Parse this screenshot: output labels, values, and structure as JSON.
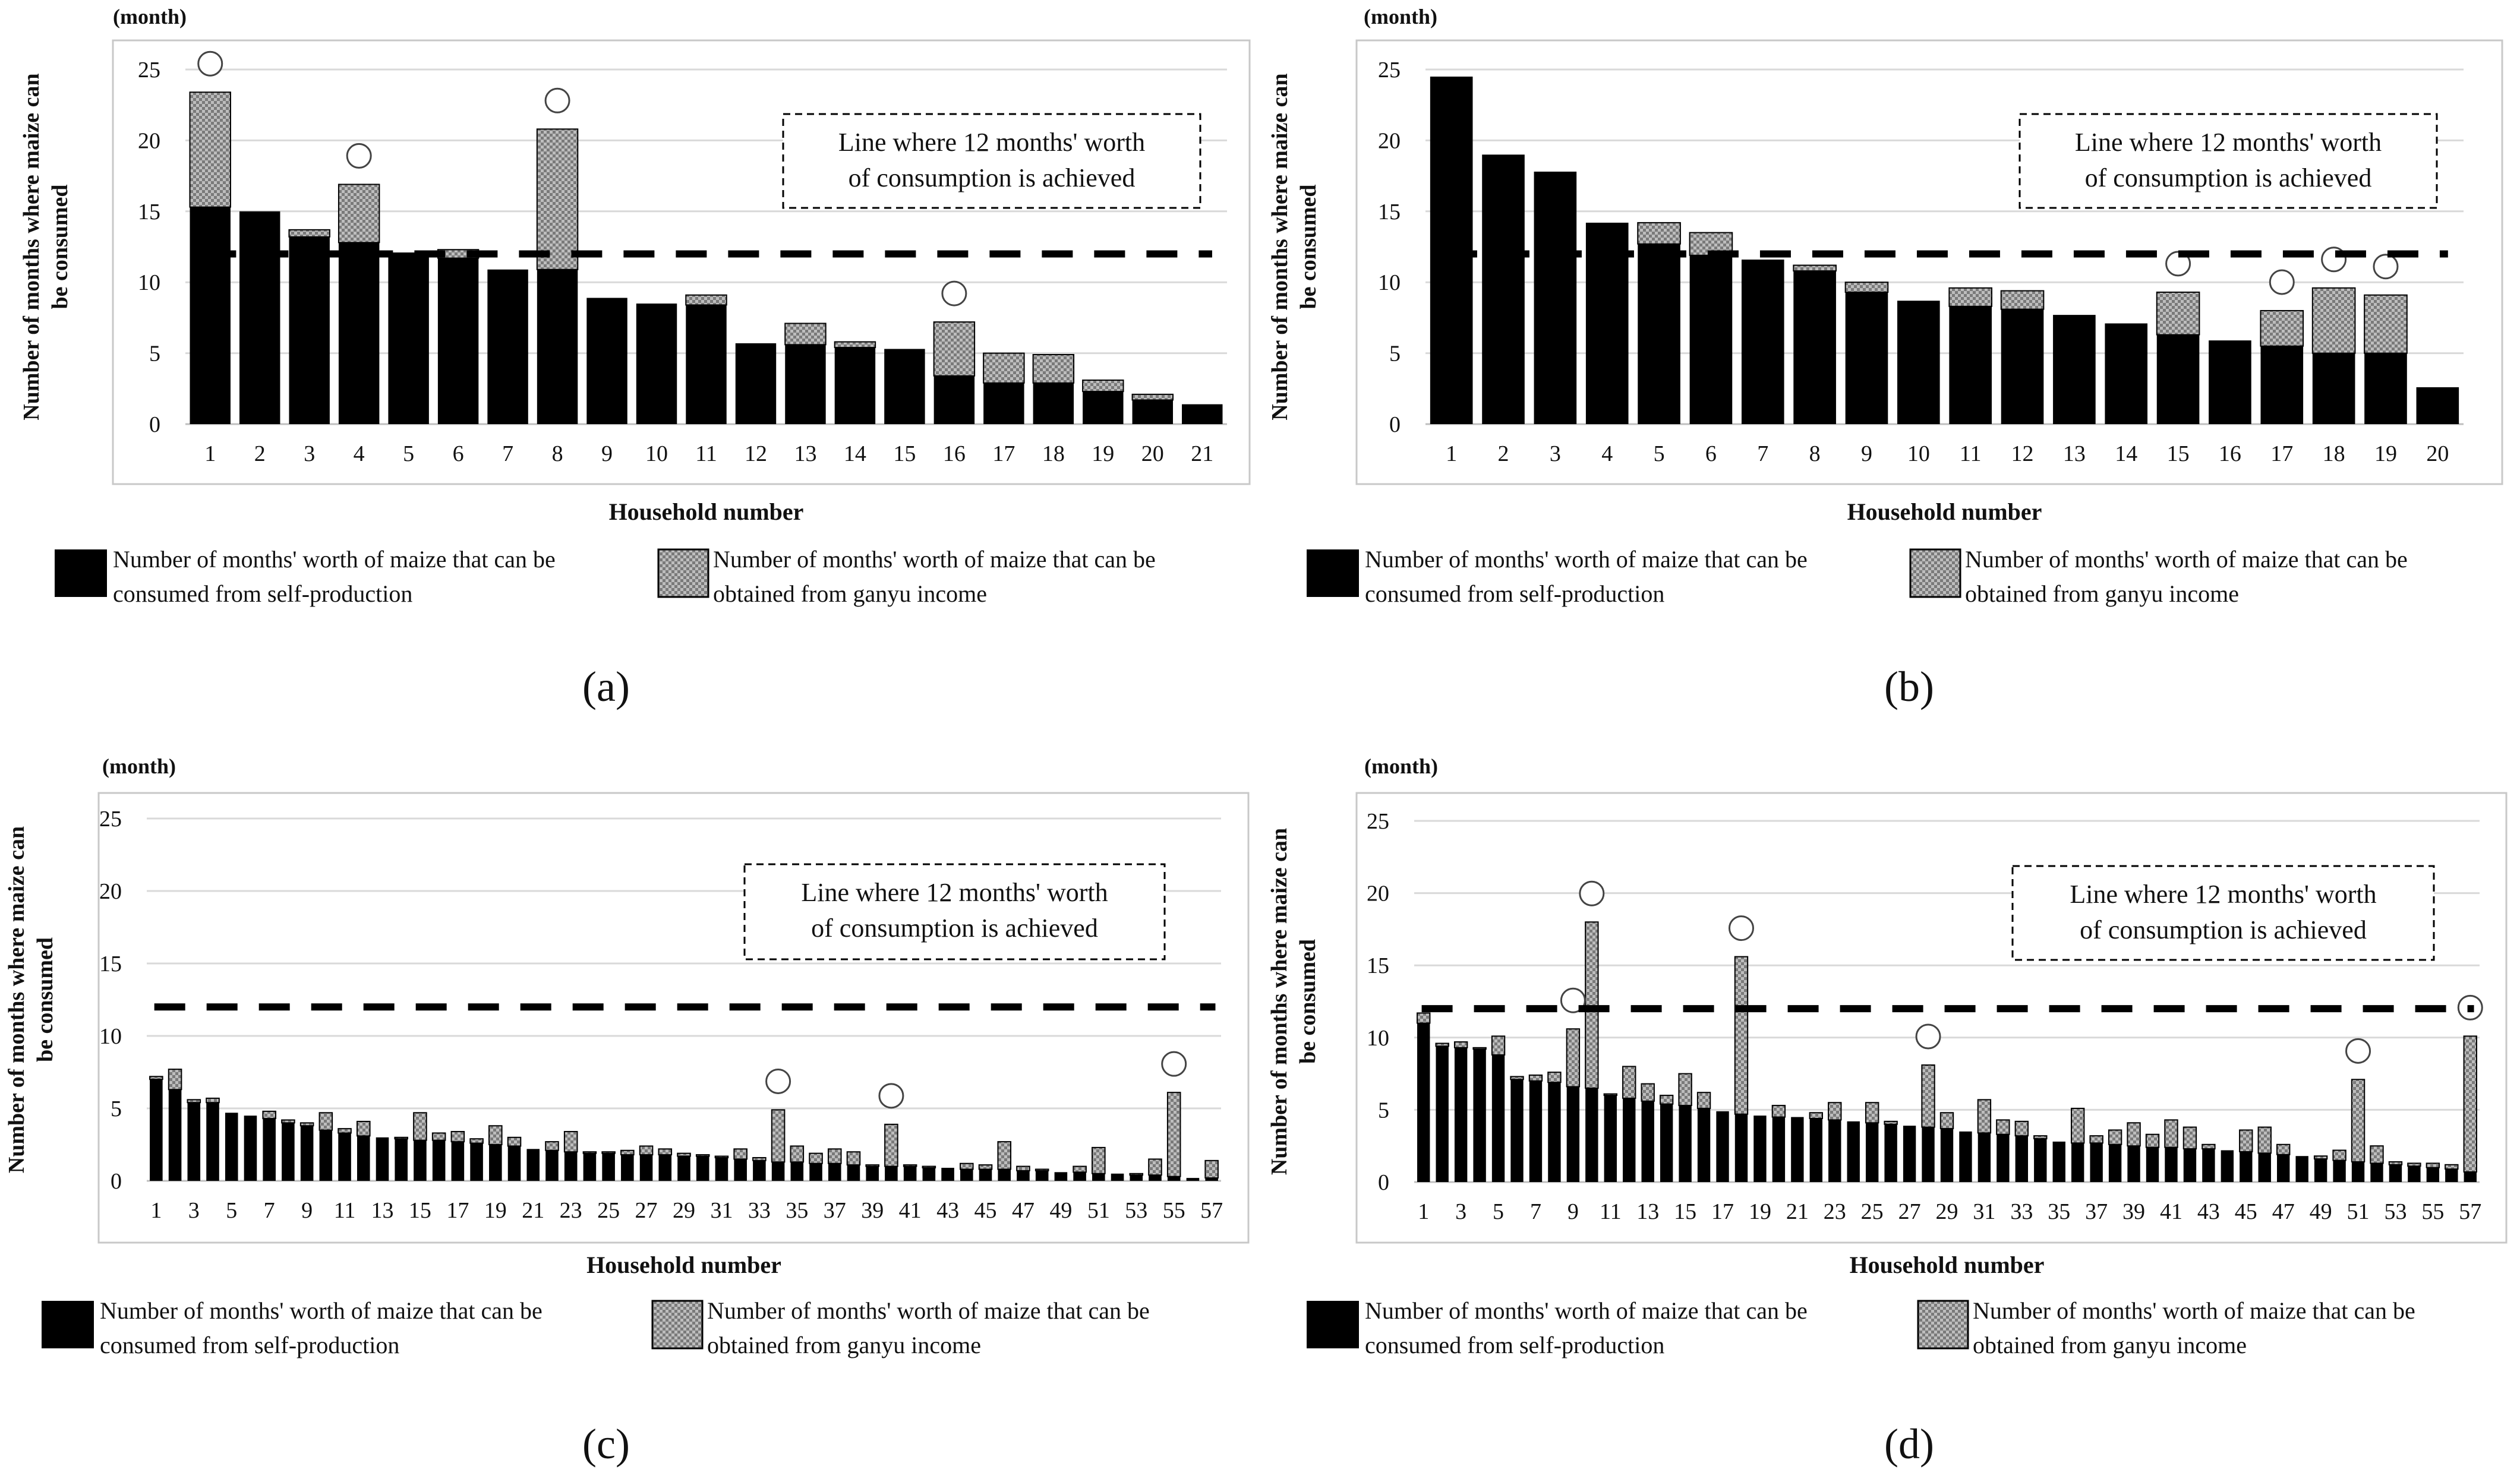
{
  "colors": {
    "self_production": "#000000",
    "ganyu": "#a8a8a8",
    "gridline": "#d9d9d9",
    "frame": "#c8c8c8",
    "threshold_line": "#000000"
  },
  "chart_data": [
    {
      "panel": "(a)",
      "type": "bar",
      "stacked": true,
      "unit_label": "(month)",
      "xlabel": "Household number",
      "ylabel_lines": [
        "Number of months where maize can",
        "be consumed"
      ],
      "ylim": [
        0,
        25
      ],
      "yticks": [
        "0",
        "5",
        "10",
        "15",
        "20",
        "25"
      ],
      "grid": true,
      "threshold": 12,
      "annotation_lines": [
        "Line where  12 months' worth",
        "of consumption is achieved"
      ],
      "annotation_position": "top-right",
      "categories": [
        "1",
        "2",
        "3",
        "4",
        "5",
        "6",
        "7",
        "8",
        "9",
        "10",
        "11",
        "12",
        "13",
        "14",
        "15",
        "16",
        "17",
        "18",
        "19",
        "20",
        "21"
      ],
      "xtick_labels": [
        "1",
        "2",
        "3",
        "4",
        "5",
        "6",
        "7",
        "8",
        "9",
        "10",
        "11",
        "12",
        "13",
        "14",
        "15",
        "16",
        "17",
        "18",
        "19",
        "20",
        "21"
      ],
      "series": [
        {
          "name": "Number of months' worth of maize that can be consumed from self-production",
          "values": [
            15.3,
            15.0,
            13.2,
            12.8,
            12.1,
            11.7,
            10.9,
            10.9,
            8.9,
            8.5,
            8.4,
            5.7,
            5.6,
            5.4,
            5.3,
            3.4,
            2.9,
            2.9,
            2.3,
            1.7,
            1.4
          ]
        },
        {
          "name": "Number of months' worth of maize that can be obtained from ganyu income",
          "values": [
            8.1,
            0.0,
            0.5,
            4.1,
            0.0,
            0.6,
            0.0,
            9.9,
            0.0,
            0.0,
            0.7,
            0.0,
            1.5,
            0.4,
            0.0,
            3.8,
            2.1,
            2.0,
            0.8,
            0.4,
            0.0
          ]
        }
      ],
      "circled_categories": [
        "1",
        "4",
        "8",
        "16"
      ],
      "legend": [
        {
          "lines": [
            "Number of months' worth of maize that can be",
            "consumed from self-production"
          ]
        },
        {
          "lines": [
            "Number of months' worth of maize that can be",
            "obtained from ganyu income"
          ]
        }
      ]
    },
    {
      "panel": "(b)",
      "type": "bar",
      "stacked": true,
      "unit_label": "(month)",
      "xlabel": "Household number",
      "ylabel_lines": [
        "Number of months where maize can",
        "be consumed"
      ],
      "ylim": [
        0,
        25
      ],
      "yticks": [
        "0",
        "5",
        "10",
        "15",
        "20",
        "25"
      ],
      "grid": true,
      "threshold": 12,
      "annotation_lines": [
        "Line where  12 months' worth",
        "of consumption is achieved"
      ],
      "annotation_position": "top-right",
      "categories": [
        "1",
        "2",
        "3",
        "4",
        "5",
        "6",
        "7",
        "8",
        "9",
        "10",
        "11",
        "12",
        "13",
        "14",
        "15",
        "16",
        "17",
        "18",
        "19",
        "20"
      ],
      "xtick_labels": [
        "1",
        "2",
        "3",
        "4",
        "5",
        "6",
        "7",
        "8",
        "9",
        "10",
        "11",
        "12",
        "13",
        "14",
        "15",
        "16",
        "17",
        "18",
        "19",
        "20"
      ],
      "series": [
        {
          "name": "Number of months' worth of maize that can be consumed from self-production",
          "values": [
            24.5,
            19.0,
            17.8,
            14.2,
            12.7,
            11.9,
            11.6,
            10.8,
            9.3,
            8.7,
            8.3,
            8.1,
            7.7,
            7.1,
            6.3,
            5.9,
            5.5,
            5.0,
            5.0,
            2.6
          ]
        },
        {
          "name": "Number of months' worth of maize that can be obtained from ganyu income",
          "values": [
            0.0,
            0.0,
            0.0,
            0.0,
            1.5,
            1.6,
            0.0,
            0.4,
            0.7,
            0.0,
            1.3,
            1.3,
            0.0,
            0.0,
            3.0,
            0.0,
            2.5,
            4.6,
            4.1,
            0.0
          ]
        }
      ],
      "circled_categories": [
        "15",
        "17",
        "18",
        "19"
      ],
      "legend": [
        {
          "lines": [
            "Number of months' worth of maize that can be",
            "consumed from self-production"
          ]
        },
        {
          "lines": [
            "Number of months' worth of maize that can be",
            "obtained from ganyu income"
          ]
        }
      ]
    },
    {
      "panel": "(c)",
      "type": "bar",
      "stacked": true,
      "unit_label": "(month)",
      "xlabel": "Household number",
      "ylabel_lines": [
        "Number of months where maize can",
        "be consumed"
      ],
      "ylim": [
        0,
        25
      ],
      "yticks": [
        "0",
        "5",
        "10",
        "15",
        "20",
        "25"
      ],
      "grid": true,
      "threshold": 12,
      "annotation_lines": [
        "Line where  12 months' worth",
        "of consumption is achieved"
      ],
      "annotation_position": "top-right",
      "categories": [
        "1",
        "2",
        "3",
        "4",
        "5",
        "6",
        "7",
        "8",
        "9",
        "10",
        "11",
        "12",
        "13",
        "14",
        "15",
        "16",
        "17",
        "18",
        "19",
        "20",
        "21",
        "22",
        "23",
        "24",
        "25",
        "26",
        "27",
        "28",
        "29",
        "30",
        "31",
        "32",
        "33",
        "34",
        "35",
        "36",
        "37",
        "38",
        "39",
        "40",
        "41",
        "42",
        "43",
        "44",
        "45",
        "46",
        "47",
        "48",
        "49",
        "50",
        "51",
        "52",
        "53",
        "54",
        "55",
        "56",
        "57"
      ],
      "xtick_labels": [
        "1",
        "",
        "3",
        "",
        "5",
        "",
        "7",
        "",
        "9",
        "",
        "11",
        "",
        "13",
        "",
        "15",
        "",
        "17",
        "",
        "19",
        "",
        "21",
        "",
        "23",
        "",
        "25",
        "",
        "27",
        "",
        "29",
        "",
        "31",
        "",
        "33",
        "",
        "35",
        "",
        "37",
        "",
        "39",
        "",
        "41",
        "",
        "43",
        "",
        "45",
        "",
        "47",
        "",
        "49",
        "",
        "51",
        "",
        "53",
        "",
        "55",
        "",
        "57"
      ],
      "series": [
        {
          "name": "Number of months' worth of maize that can be consumed from self-production",
          "values": [
            7.0,
            6.3,
            5.4,
            5.4,
            4.7,
            4.5,
            4.3,
            4.0,
            3.8,
            3.5,
            3.3,
            3.1,
            3.0,
            2.9,
            2.8,
            2.8,
            2.7,
            2.6,
            2.5,
            2.4,
            2.2,
            2.1,
            2.0,
            1.9,
            1.9,
            1.8,
            1.8,
            1.8,
            1.7,
            1.7,
            1.6,
            1.5,
            1.4,
            1.3,
            1.3,
            1.2,
            1.2,
            1.1,
            1.0,
            1.0,
            1.0,
            0.9,
            0.9,
            0.8,
            0.8,
            0.8,
            0.7,
            0.7,
            0.6,
            0.6,
            0.5,
            0.5,
            0.4,
            0.4,
            0.3,
            0.2,
            0.2
          ]
        },
        {
          "name": "Number of months' worth of maize that can be obtained from ganyu income",
          "values": [
            0.2,
            1.4,
            0.2,
            0.3,
            0.0,
            0.0,
            0.5,
            0.2,
            0.2,
            1.2,
            0.3,
            1.0,
            0.0,
            0.1,
            1.9,
            0.5,
            0.7,
            0.3,
            1.3,
            0.6,
            0.0,
            0.6,
            1.4,
            0.1,
            0.1,
            0.3,
            0.6,
            0.4,
            0.2,
            0.1,
            0.1,
            0.7,
            0.2,
            3.6,
            1.1,
            0.7,
            1.0,
            0.9,
            0.1,
            2.9,
            0.1,
            0.1,
            0.0,
            0.4,
            0.3,
            1.9,
            0.3,
            0.1,
            0.0,
            0.4,
            1.8,
            0.0,
            0.1,
            1.1,
            5.8,
            0.0,
            1.2
          ]
        }
      ],
      "circled_categories": [
        "34",
        "40",
        "55"
      ],
      "legend": [
        {
          "lines": [
            "Number of months' worth of maize that can be",
            "consumed from self-production"
          ]
        },
        {
          "lines": [
            "Number of months' worth of maize that can be",
            "obtained from ganyu income"
          ]
        }
      ]
    },
    {
      "panel": "(d)",
      "type": "bar",
      "stacked": true,
      "unit_label": "(month)",
      "xlabel": "Household number",
      "ylabel_lines": [
        "Number of months where maize can",
        "be consumed"
      ],
      "ylim": [
        0,
        25
      ],
      "yticks": [
        "0",
        "5",
        "10",
        "15",
        "20",
        "25"
      ],
      "grid": true,
      "threshold": 12,
      "annotation_lines": [
        "Line where  12 months' worth",
        "of consumption is achieved"
      ],
      "annotation_position": "top-right",
      "categories": [
        "1",
        "2",
        "3",
        "4",
        "5",
        "6",
        "7",
        "8",
        "9",
        "10",
        "11",
        "12",
        "13",
        "14",
        "15",
        "16",
        "17",
        "18",
        "19",
        "20",
        "21",
        "22",
        "23",
        "24",
        "25",
        "26",
        "27",
        "28",
        "29",
        "30",
        "31",
        "32",
        "33",
        "34",
        "35",
        "36",
        "37",
        "38",
        "39",
        "40",
        "41",
        "42",
        "43",
        "44",
        "45",
        "46",
        "47",
        "48",
        "49",
        "50",
        "51",
        "52",
        "53",
        "54",
        "55",
        "56",
        "57"
      ],
      "xtick_labels": [
        "1",
        "",
        "3",
        "",
        "5",
        "",
        "7",
        "",
        "9",
        "",
        "11",
        "",
        "13",
        "",
        "15",
        "",
        "17",
        "",
        "19",
        "",
        "21",
        "",
        "23",
        "",
        "25",
        "",
        "27",
        "",
        "29",
        "",
        "31",
        "",
        "33",
        "",
        "35",
        "",
        "37",
        "",
        "39",
        "",
        "41",
        "",
        "43",
        "",
        "45",
        "",
        "47",
        "",
        "49",
        "",
        "51",
        "",
        "53",
        "",
        "55",
        "",
        "57"
      ],
      "series": [
        {
          "name": "Number of months' worth of maize that can be consumed from self-production",
          "values": [
            11.0,
            9.4,
            9.3,
            9.2,
            8.8,
            7.1,
            7.0,
            6.9,
            6.6,
            6.5,
            6.0,
            5.8,
            5.6,
            5.4,
            5.3,
            5.1,
            4.9,
            4.7,
            4.6,
            4.5,
            4.5,
            4.4,
            4.3,
            4.2,
            4.1,
            4.0,
            3.9,
            3.8,
            3.7,
            3.5,
            3.4,
            3.3,
            3.2,
            3.0,
            2.8,
            2.7,
            2.7,
            2.6,
            2.5,
            2.4,
            2.4,
            2.3,
            2.3,
            2.2,
            2.1,
            2.0,
            1.9,
            1.8,
            1.6,
            1.5,
            1.4,
            1.3,
            1.2,
            1.1,
            1.0,
            0.9,
            0.7
          ]
        },
        {
          "name": "Number of months' worth of maize that can be obtained from ganyu income",
          "values": [
            0.7,
            0.2,
            0.4,
            0.1,
            1.3,
            0.2,
            0.4,
            0.7,
            4.0,
            11.5,
            0.1,
            2.2,
            1.2,
            0.6,
            2.2,
            1.1,
            0.0,
            10.9,
            0.0,
            0.8,
            0.0,
            0.4,
            1.2,
            0.0,
            1.4,
            0.2,
            0.0,
            4.3,
            1.1,
            0.0,
            2.3,
            1.0,
            1.0,
            0.2,
            0.0,
            2.4,
            0.5,
            1.0,
            1.6,
            0.9,
            1.9,
            1.5,
            0.3,
            0.0,
            1.5,
            1.8,
            0.7,
            0.0,
            0.2,
            0.7,
            5.7,
            1.2,
            0.2,
            0.2,
            0.3,
            0.3,
            9.4
          ]
        }
      ],
      "circled_categories": [
        "9",
        "10",
        "18",
        "28",
        "51",
        "57"
      ],
      "legend": [
        {
          "lines": [
            "Number of months' worth of maize that can be",
            "consumed from self-production"
          ]
        },
        {
          "lines": [
            "Number of months' worth of maize that can be",
            "obtained from ganyu income"
          ]
        }
      ]
    }
  ]
}
